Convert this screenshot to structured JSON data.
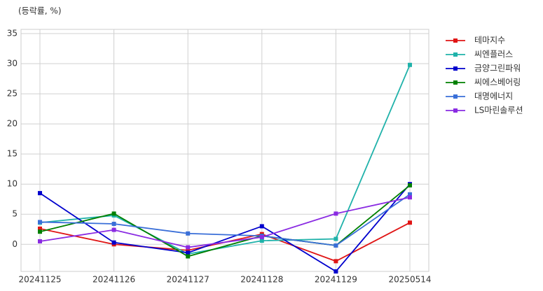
{
  "chart_data": {
    "type": "line",
    "y_label": "(등락률, %)",
    "categories": [
      "20241125",
      "20241126",
      "20241127",
      "20241128",
      "20241129",
      "20250514"
    ],
    "series": [
      {
        "name": "테마지수",
        "color": "#e01515",
        "values": [
          2.6,
          0.0,
          -1.0,
          1.7,
          -2.8,
          3.6
        ]
      },
      {
        "name": "씨엔플러스",
        "color": "#20b2aa",
        "values": [
          3.6,
          4.8,
          -1.6,
          0.6,
          0.9,
          29.8
        ]
      },
      {
        "name": "금양그린파워",
        "color": "#0000cd",
        "values": [
          8.5,
          0.3,
          -1.4,
          3.0,
          -4.5,
          10.0
        ]
      },
      {
        "name": "씨에스베어링",
        "color": "#008000",
        "values": [
          2.1,
          5.1,
          -2.0,
          1.4,
          -0.2,
          9.8
        ]
      },
      {
        "name": "대명에너지",
        "color": "#3a6fd8",
        "values": [
          3.7,
          3.4,
          1.8,
          1.4,
          -0.2,
          8.3
        ]
      },
      {
        "name": "LS마린솔루션",
        "color": "#8a2be2",
        "values": [
          0.5,
          2.4,
          -0.5,
          1.2,
          5.1,
          7.8
        ]
      }
    ],
    "ylim": [
      -4.5,
      35.7
    ],
    "yticks": [
      0,
      5,
      10,
      15,
      20,
      25,
      30,
      35
    ],
    "grid": true,
    "legend": "right"
  }
}
